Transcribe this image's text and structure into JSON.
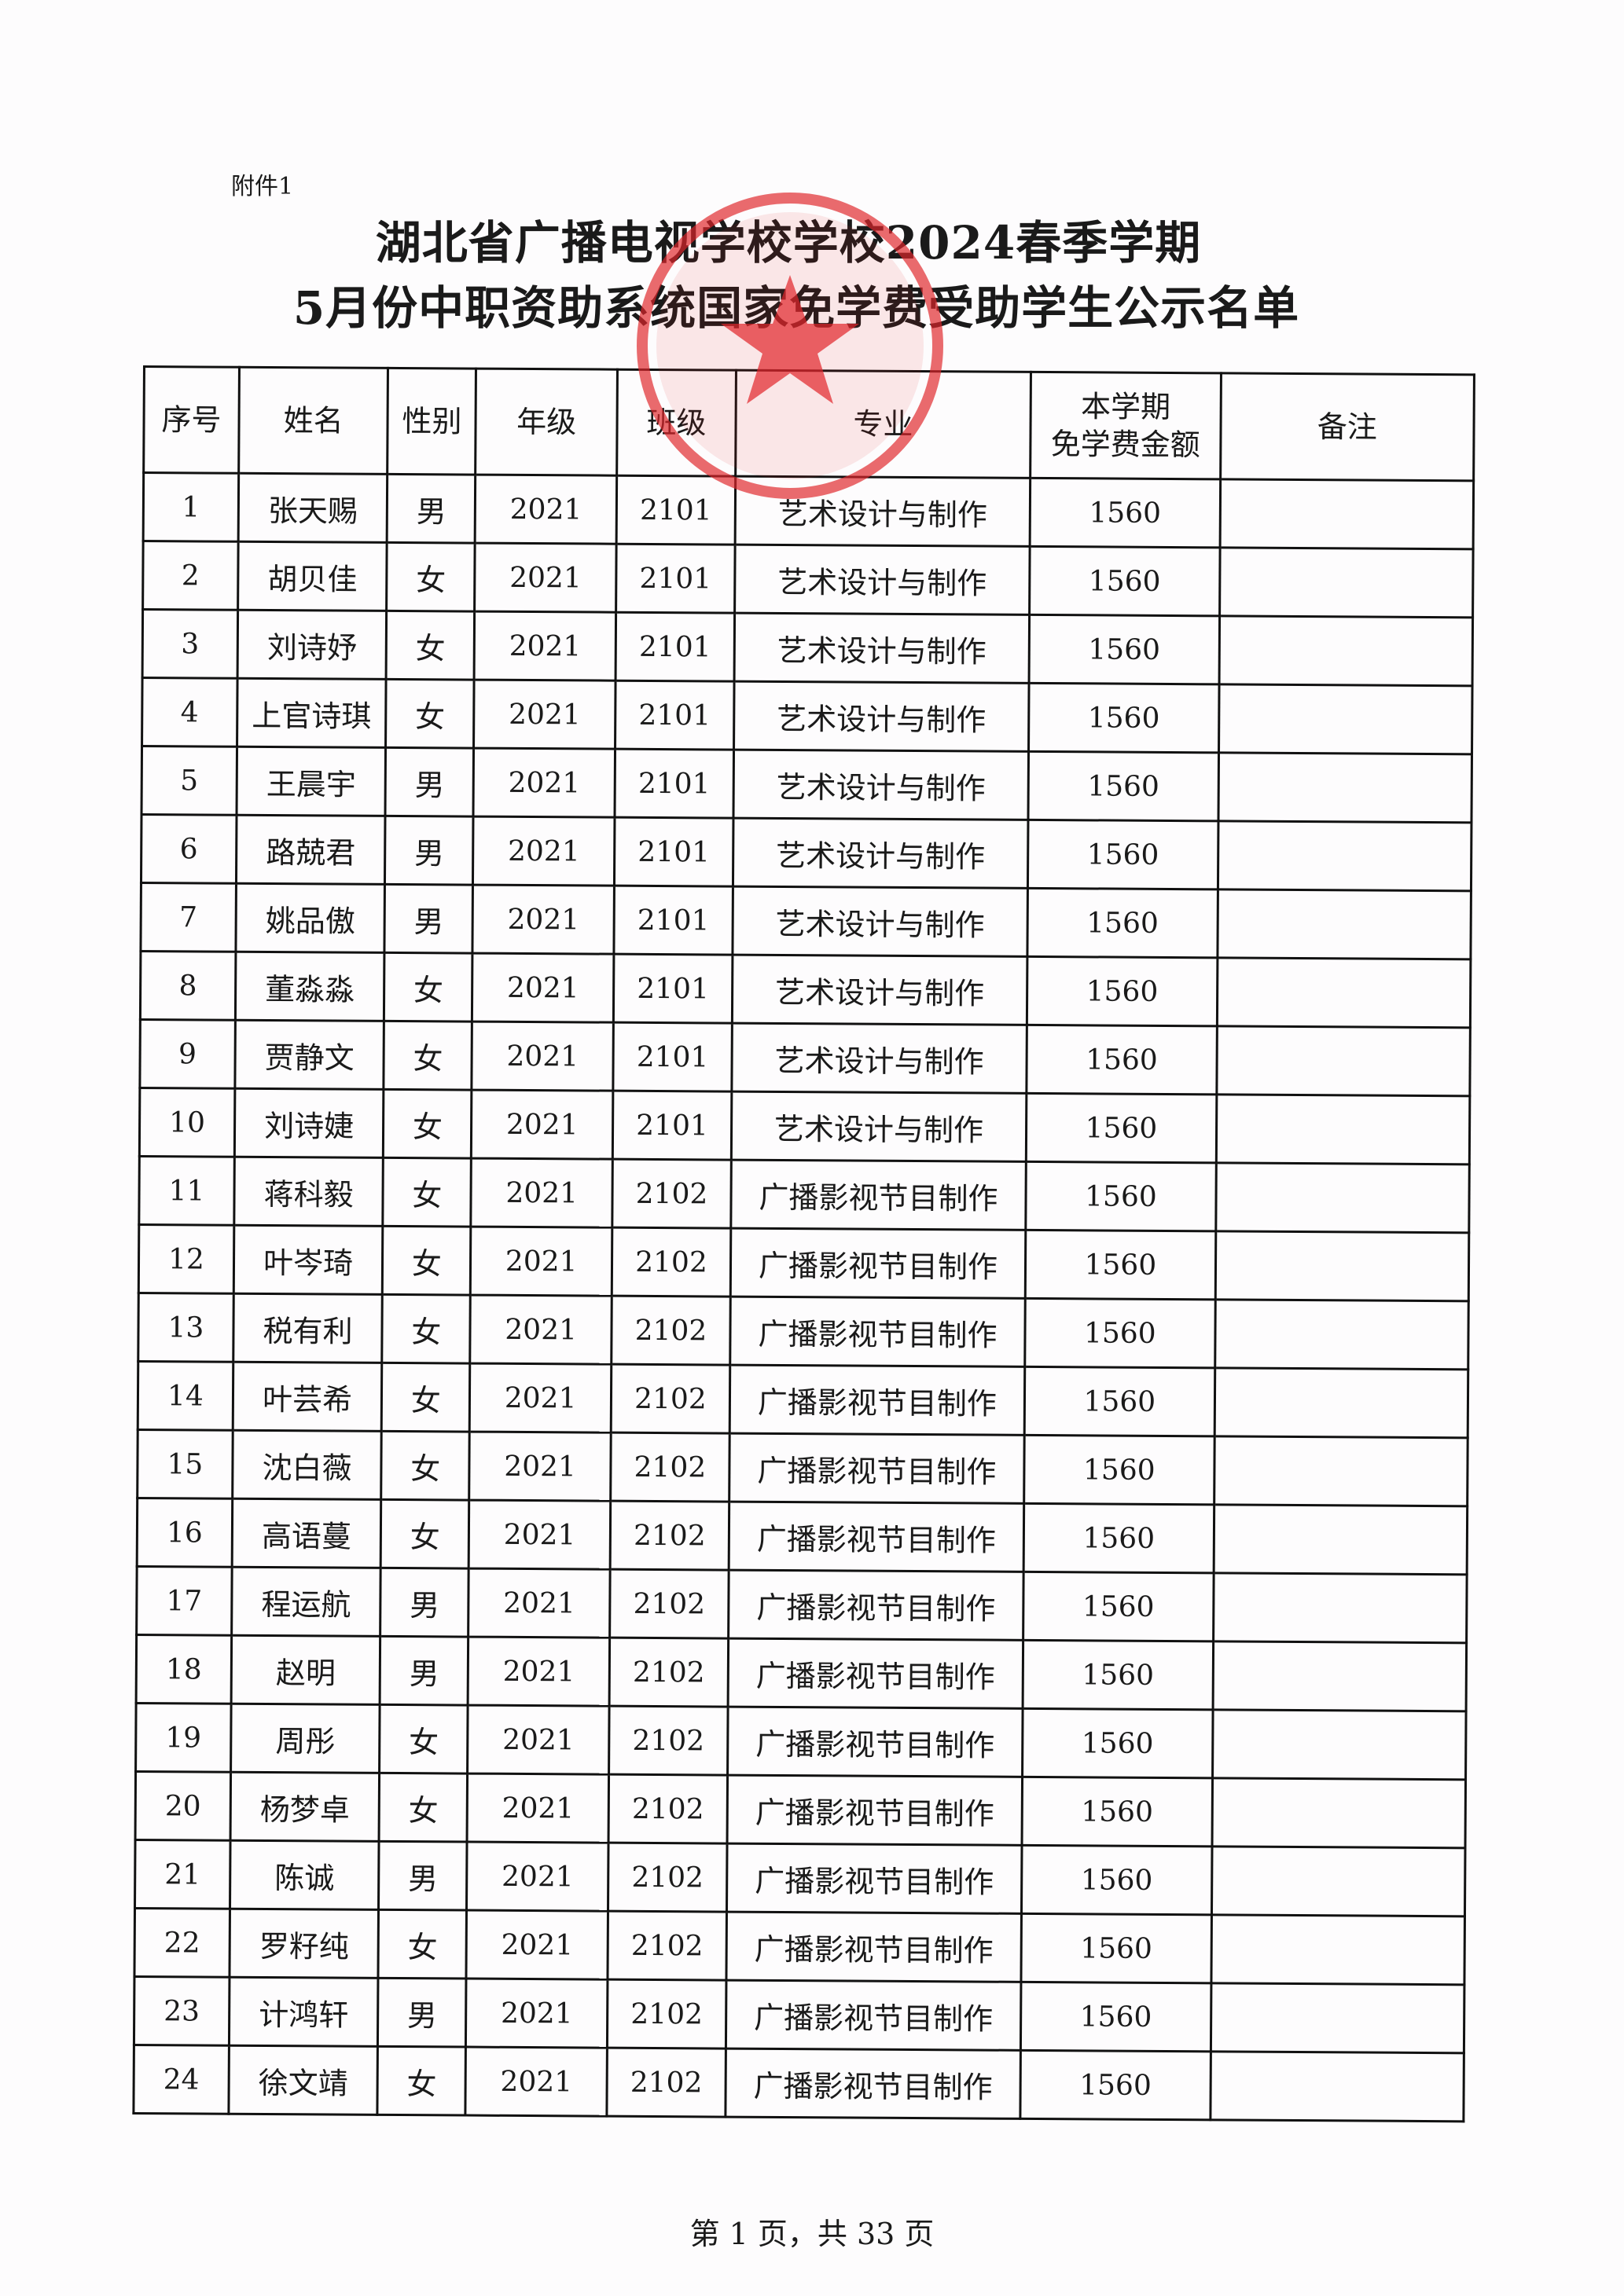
{
  "attachment_label": "附件1",
  "title_line1": "湖北省广播电视学校学校2024春季学期",
  "title_line2": "5月份中职资助系统国家免学费受助学生公示名单",
  "stamp_color": "#e0262b",
  "table": {
    "headers": [
      "序号",
      "姓名",
      "性别",
      "年级",
      "班级",
      "专业",
      "本学期\n免学费金额",
      "备注"
    ],
    "rows": [
      [
        "1",
        "张天赐",
        "男",
        "2021",
        "2101",
        "艺术设计与制作",
        "1560",
        ""
      ],
      [
        "2",
        "胡贝佳",
        "女",
        "2021",
        "2101",
        "艺术设计与制作",
        "1560",
        ""
      ],
      [
        "3",
        "刘诗妤",
        "女",
        "2021",
        "2101",
        "艺术设计与制作",
        "1560",
        ""
      ],
      [
        "4",
        "上官诗琪",
        "女",
        "2021",
        "2101",
        "艺术设计与制作",
        "1560",
        ""
      ],
      [
        "5",
        "王晨宇",
        "男",
        "2021",
        "2101",
        "艺术设计与制作",
        "1560",
        ""
      ],
      [
        "6",
        "路兢君",
        "男",
        "2021",
        "2101",
        "艺术设计与制作",
        "1560",
        ""
      ],
      [
        "7",
        "姚品傲",
        "男",
        "2021",
        "2101",
        "艺术设计与制作",
        "1560",
        ""
      ],
      [
        "8",
        "董淼淼",
        "女",
        "2021",
        "2101",
        "艺术设计与制作",
        "1560",
        ""
      ],
      [
        "9",
        "贾静文",
        "女",
        "2021",
        "2101",
        "艺术设计与制作",
        "1560",
        ""
      ],
      [
        "10",
        "刘诗婕",
        "女",
        "2021",
        "2101",
        "艺术设计与制作",
        "1560",
        ""
      ],
      [
        "11",
        "蒋科毅",
        "女",
        "2021",
        "2102",
        "广播影视节目制作",
        "1560",
        ""
      ],
      [
        "12",
        "叶岑琦",
        "女",
        "2021",
        "2102",
        "广播影视节目制作",
        "1560",
        ""
      ],
      [
        "13",
        "税有利",
        "女",
        "2021",
        "2102",
        "广播影视节目制作",
        "1560",
        ""
      ],
      [
        "14",
        "叶芸希",
        "女",
        "2021",
        "2102",
        "广播影视节目制作",
        "1560",
        ""
      ],
      [
        "15",
        "沈白薇",
        "女",
        "2021",
        "2102",
        "广播影视节目制作",
        "1560",
        ""
      ],
      [
        "16",
        "高语蔓",
        "女",
        "2021",
        "2102",
        "广播影视节目制作",
        "1560",
        ""
      ],
      [
        "17",
        "程运航",
        "男",
        "2021",
        "2102",
        "广播影视节目制作",
        "1560",
        ""
      ],
      [
        "18",
        "赵明",
        "男",
        "2021",
        "2102",
        "广播影视节目制作",
        "1560",
        ""
      ],
      [
        "19",
        "周彤",
        "女",
        "2021",
        "2102",
        "广播影视节目制作",
        "1560",
        ""
      ],
      [
        "20",
        "杨梦卓",
        "女",
        "2021",
        "2102",
        "广播影视节目制作",
        "1560",
        ""
      ],
      [
        "21",
        "陈诚",
        "男",
        "2021",
        "2102",
        "广播影视节目制作",
        "1560",
        ""
      ],
      [
        "22",
        "罗籽纯",
        "女",
        "2021",
        "2102",
        "广播影视节目制作",
        "1560",
        ""
      ],
      [
        "23",
        "计鸿轩",
        "男",
        "2021",
        "2102",
        "广播影视节目制作",
        "1560",
        ""
      ],
      [
        "24",
        "徐文靖",
        "女",
        "2021",
        "2102",
        "广播影视节目制作",
        "1560",
        ""
      ]
    ]
  },
  "footer": "第 1 页，共 33 页"
}
